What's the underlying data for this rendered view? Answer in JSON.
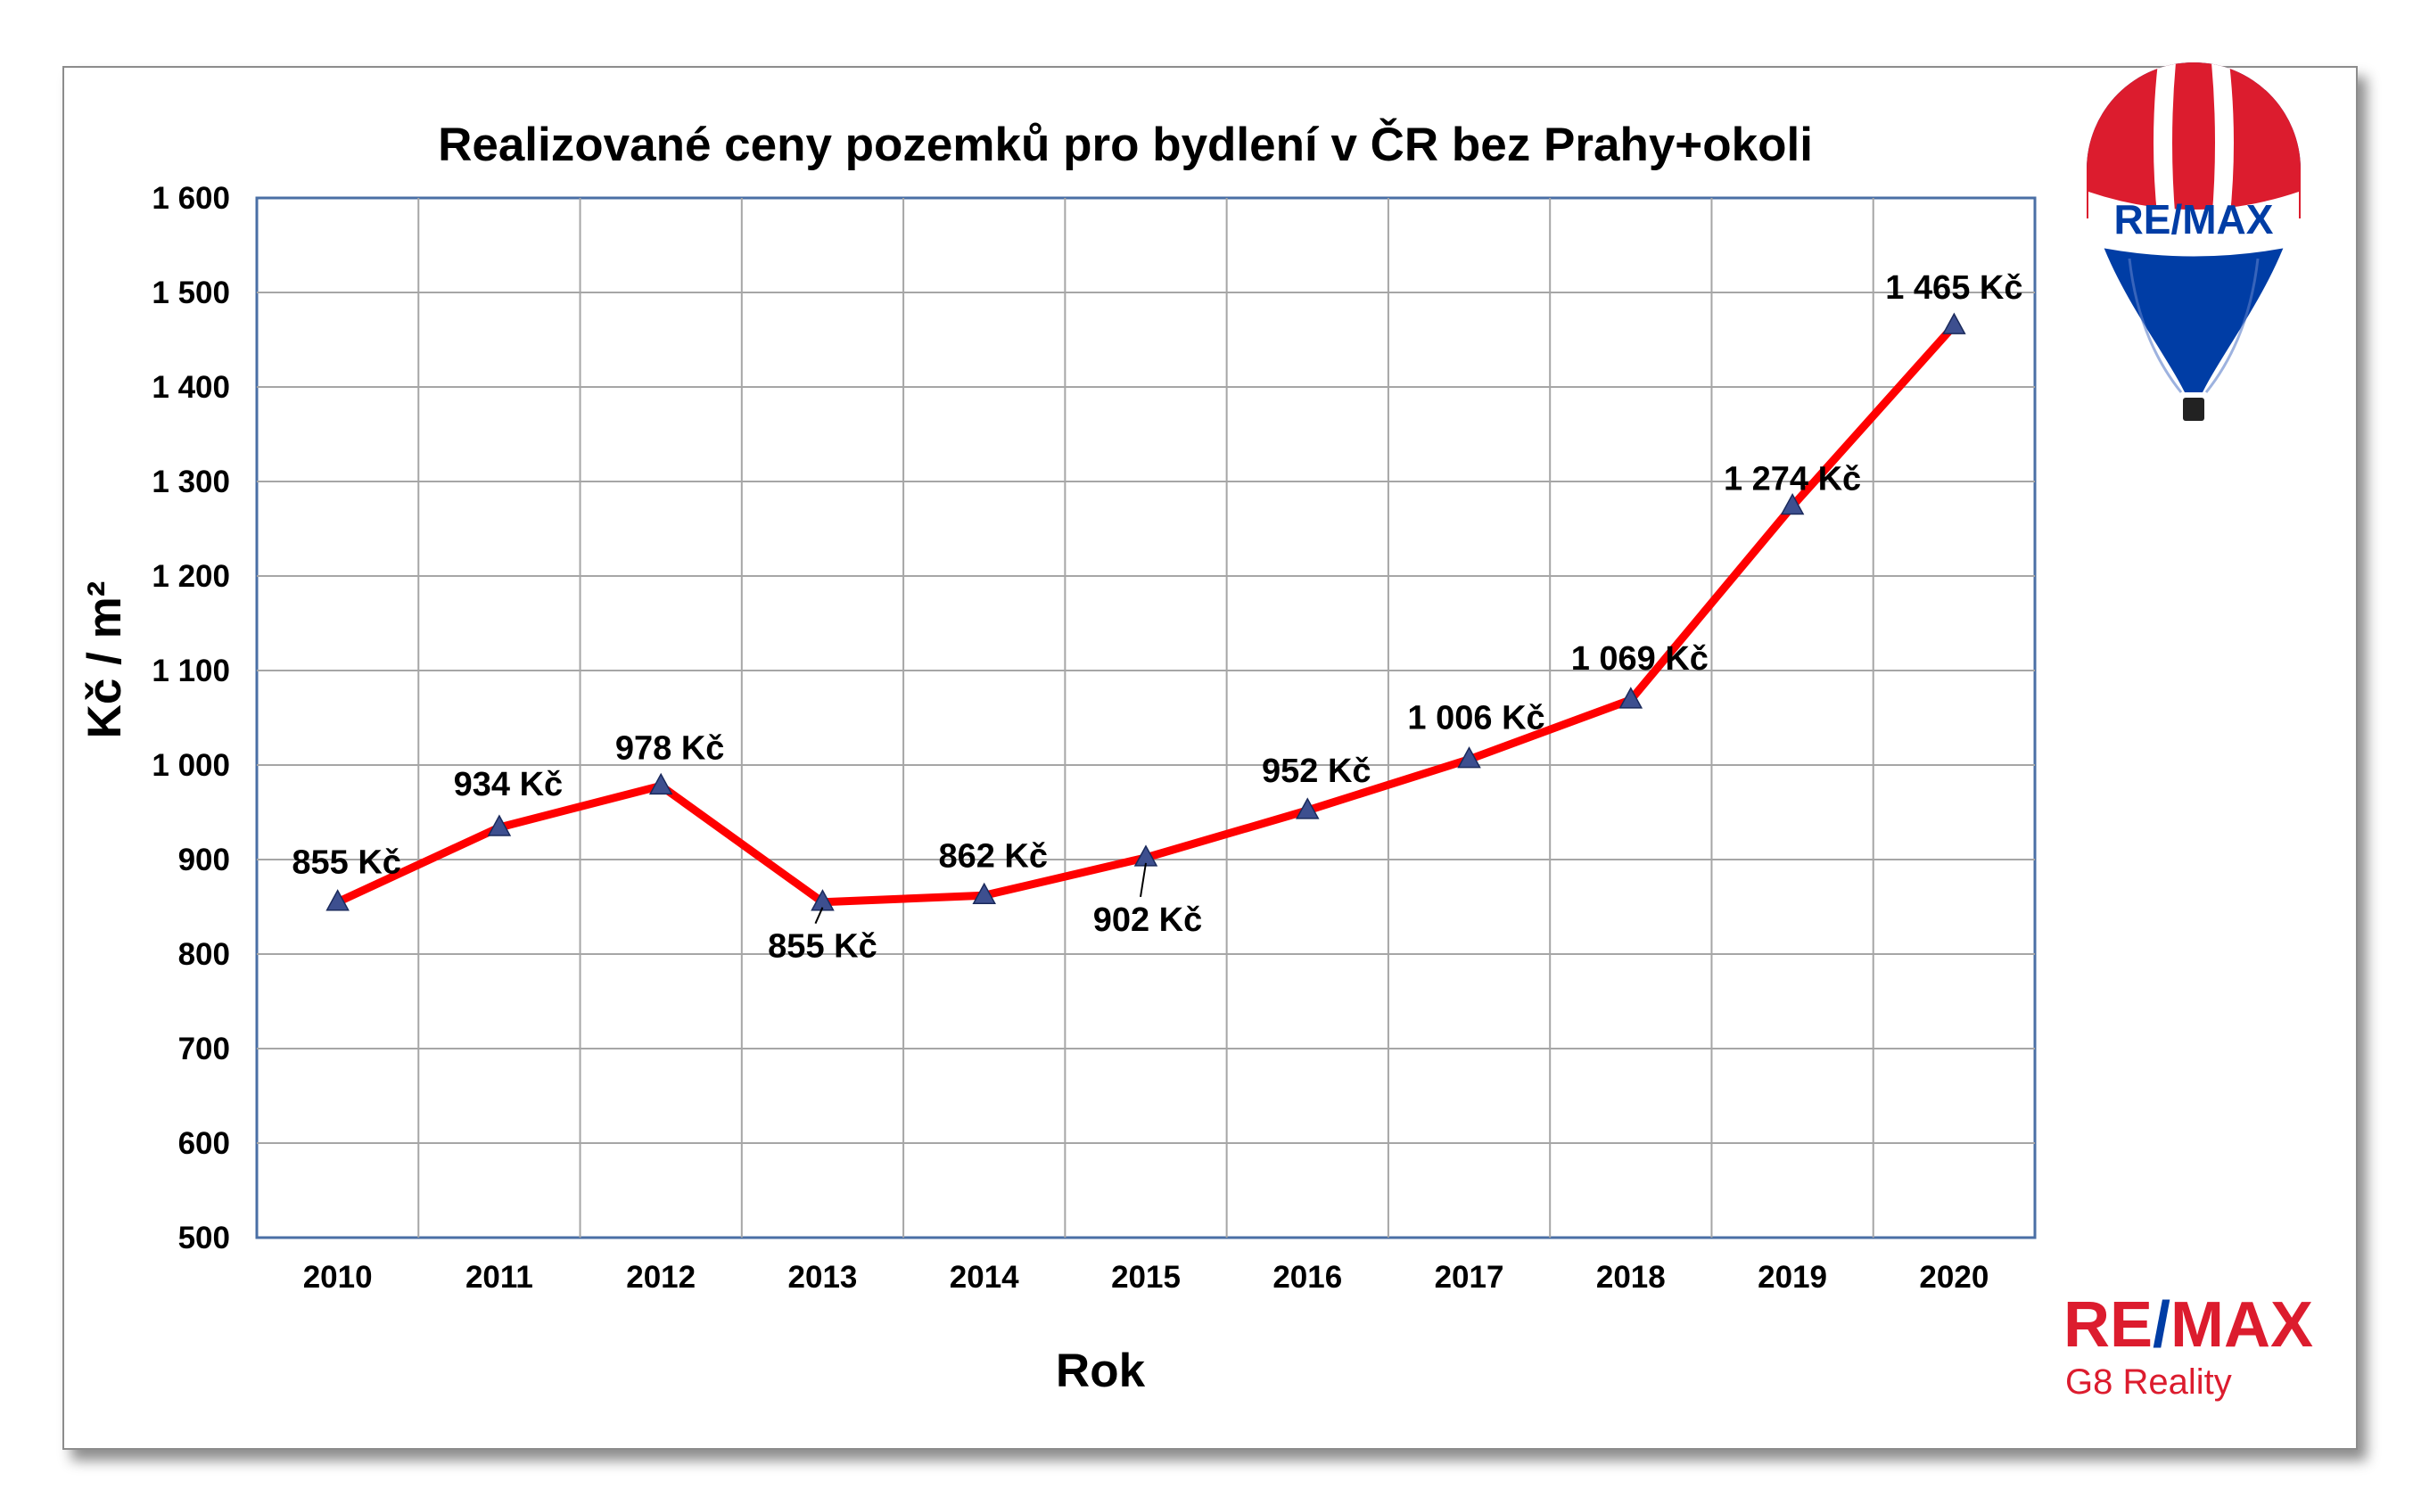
{
  "chart_data": {
    "type": "line",
    "title": "Realizované ceny pozemků pro bydlení v ČR bez Prahy+okoli",
    "xlabel": "Rok",
    "ylabel": "Kč / m²",
    "ylim": [
      500,
      1600
    ],
    "yticks": [
      "500",
      "600",
      "700",
      "800",
      "900",
      "1 000",
      "1 100",
      "1 200",
      "1 300",
      "1 400",
      "1 500",
      "1 600"
    ],
    "categories": [
      "2010",
      "2011",
      "2012",
      "2013",
      "2014",
      "2015",
      "2016",
      "2017",
      "2018",
      "2019",
      "2020"
    ],
    "values": [
      855,
      934,
      978,
      855,
      862,
      902,
      952,
      1006,
      1069,
      1274,
      1465
    ],
    "data_labels": [
      "855 Kč",
      "934 Kč",
      "978 Kč",
      "855 Kč",
      "862 Kč",
      "902 Kč",
      "952 Kč",
      "1 006 Kč",
      "1 069 Kč",
      "1 274 Kč",
      "1 465 Kč"
    ],
    "grid": true,
    "legend": "none",
    "line_color": "#ff0000",
    "marker_color": "#3d4f8f"
  },
  "branding": {
    "balloon_text": "RE/MAX",
    "logo_re": "RE",
    "logo_slash": "/",
    "logo_max": "MAX",
    "logo_subtitle": "G8 Reality",
    "colors": {
      "red": "#dc1c2e",
      "blue": "#003da5"
    }
  }
}
